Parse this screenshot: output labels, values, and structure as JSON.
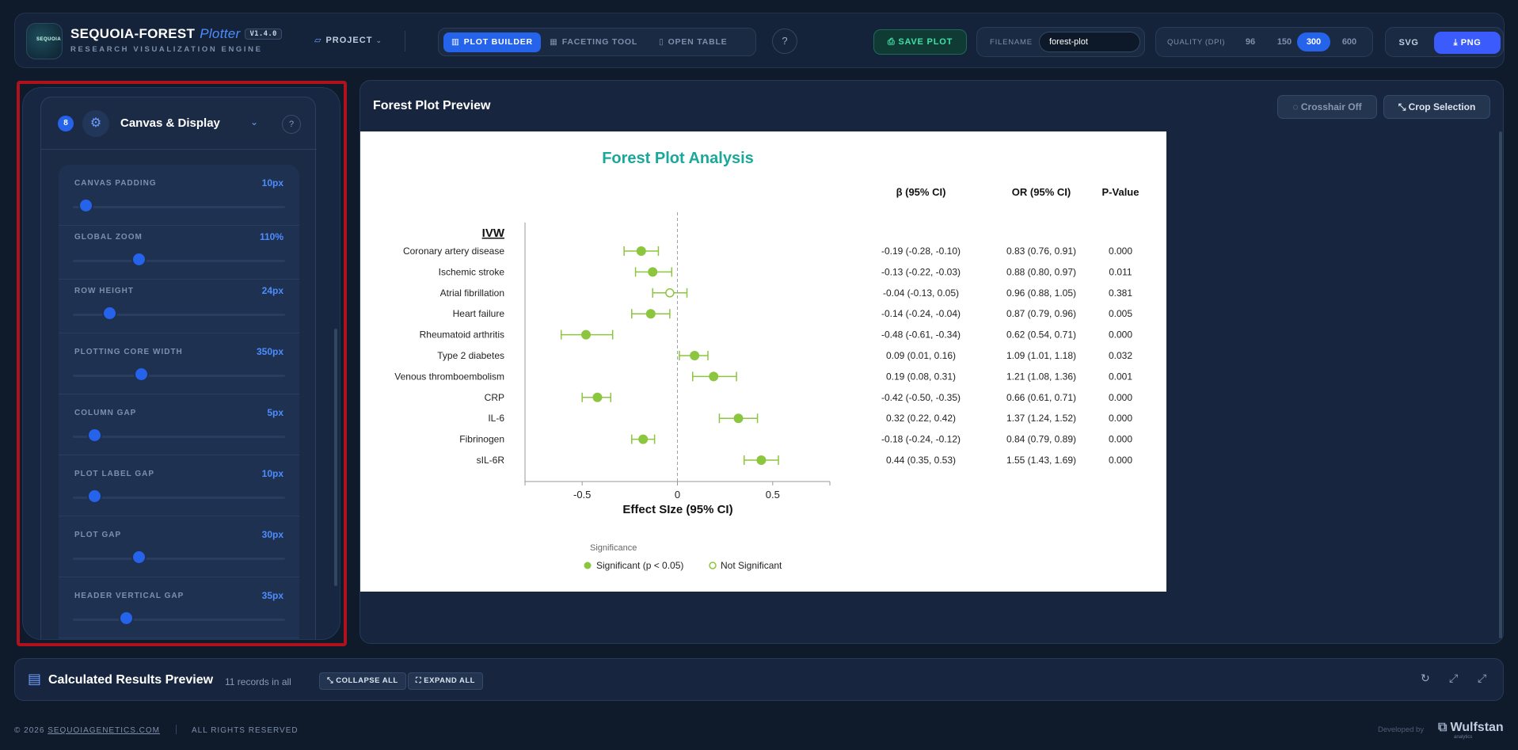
{
  "brand": {
    "logo_text": "SEQUOIA",
    "name": "SEQUOIA-FOREST",
    "product": "Plotter",
    "version": "V1.4.0",
    "subtitle": "RESEARCH VISUALIZATION ENGINE"
  },
  "nav": {
    "project_label": "PROJECT",
    "tabs": [
      {
        "label": "PLOT BUILDER",
        "icon": "bar-chart-icon",
        "active": true
      },
      {
        "label": "FACETING TOOL",
        "icon": "grid-icon",
        "active": false
      },
      {
        "label": "OPEN TABLE",
        "icon": "file-icon",
        "active": false
      }
    ],
    "help_label": "?"
  },
  "toolbar": {
    "save_label": "SAVE PLOT",
    "filename_label": "FILENAME",
    "filename_value": "forest-plot",
    "quality_label": "QUALITY (DPI)",
    "quality_options": [
      "96",
      "150",
      "300",
      "600"
    ],
    "quality_selected": "300",
    "format_options": [
      "SVG",
      "PNG"
    ],
    "format_selected": "PNG"
  },
  "settings": {
    "section_index": "8",
    "section_title": "Canvas & Display",
    "help_label": "?",
    "sliders": [
      {
        "name": "CANVAS PADDING",
        "value": "10px",
        "fraction": 0.06
      },
      {
        "name": "GLOBAL ZOOM",
        "value": "110%",
        "fraction": 0.31
      },
      {
        "name": "ROW HEIGHT",
        "value": "24px",
        "fraction": 0.17
      },
      {
        "name": "PLOTTING CORE WIDTH",
        "value": "350px",
        "fraction": 0.32
      },
      {
        "name": "COLUMN GAP",
        "value": "5px",
        "fraction": 0.1
      },
      {
        "name": "PLOT LABEL GAP",
        "value": "10px",
        "fraction": 0.1
      },
      {
        "name": "PLOT GAP",
        "value": "30px",
        "fraction": 0.31
      },
      {
        "name": "HEADER VERTICAL GAP",
        "value": "35px",
        "fraction": 0.25
      }
    ]
  },
  "preview": {
    "title": "Forest Plot Preview",
    "crosshair_label": "Crosshair Off",
    "crop_label": "Crop Selection"
  },
  "chart_data": {
    "type": "forest",
    "title": "Forest Plot Analysis",
    "group_label": "IVW",
    "xlabel": "Effect SIze (95% CI)",
    "xticks": [
      "-0.5",
      "0",
      "0.5"
    ],
    "xlim": [
      -0.8,
      0.8
    ],
    "reference_line": 0,
    "column_headers": [
      "β (95% CI)",
      "OR (95% CI)",
      "P-Value"
    ],
    "rows": [
      {
        "label": "Coronary artery disease",
        "beta": -0.19,
        "lo": -0.28,
        "hi": -0.1,
        "beta_ci": "-0.19 (-0.28, -0.10)",
        "or_ci": "0.83 (0.76, 0.91)",
        "p": "0.000",
        "significant": true
      },
      {
        "label": "Ischemic stroke",
        "beta": -0.13,
        "lo": -0.22,
        "hi": -0.03,
        "beta_ci": "-0.13 (-0.22, -0.03)",
        "or_ci": "0.88 (0.80, 0.97)",
        "p": "0.011",
        "significant": true
      },
      {
        "label": "Atrial fibrillation",
        "beta": -0.04,
        "lo": -0.13,
        "hi": 0.05,
        "beta_ci": "-0.04 (-0.13, 0.05)",
        "or_ci": "0.96 (0.88, 1.05)",
        "p": "0.381",
        "significant": false
      },
      {
        "label": "Heart failure",
        "beta": -0.14,
        "lo": -0.24,
        "hi": -0.04,
        "beta_ci": "-0.14 (-0.24, -0.04)",
        "or_ci": "0.87 (0.79, 0.96)",
        "p": "0.005",
        "significant": true
      },
      {
        "label": "Rheumatoid arthritis",
        "beta": -0.48,
        "lo": -0.61,
        "hi": -0.34,
        "beta_ci": "-0.48 (-0.61, -0.34)",
        "or_ci": "0.62 (0.54, 0.71)",
        "p": "0.000",
        "significant": true
      },
      {
        "label": "Type 2 diabetes",
        "beta": 0.09,
        "lo": 0.01,
        "hi": 0.16,
        "beta_ci": "0.09 (0.01, 0.16)",
        "or_ci": "1.09 (1.01, 1.18)",
        "p": "0.032",
        "significant": true
      },
      {
        "label": "Venous thromboembolism",
        "beta": 0.19,
        "lo": 0.08,
        "hi": 0.31,
        "beta_ci": "0.19 (0.08, 0.31)",
        "or_ci": "1.21 (1.08, 1.36)",
        "p": "0.001",
        "significant": true
      },
      {
        "label": "CRP",
        "beta": -0.42,
        "lo": -0.5,
        "hi": -0.35,
        "beta_ci": "-0.42 (-0.50, -0.35)",
        "or_ci": "0.66 (0.61, 0.71)",
        "p": "0.000",
        "significant": true
      },
      {
        "label": "IL-6",
        "beta": 0.32,
        "lo": 0.22,
        "hi": 0.42,
        "beta_ci": "0.32 (0.22, 0.42)",
        "or_ci": "1.37 (1.24, 1.52)",
        "p": "0.000",
        "significant": true
      },
      {
        "label": "Fibrinogen",
        "beta": -0.18,
        "lo": -0.24,
        "hi": -0.12,
        "beta_ci": "-0.18 (-0.24, -0.12)",
        "or_ci": "0.84 (0.79, 0.89)",
        "p": "0.000",
        "significant": true
      },
      {
        "label": "sIL-6R",
        "beta": 0.44,
        "lo": 0.35,
        "hi": 0.53,
        "beta_ci": "0.44 (0.35, 0.53)",
        "or_ci": "1.55 (1.43, 1.69)",
        "p": "0.000",
        "significant": true
      }
    ],
    "legend": {
      "title": "Significance",
      "entries": [
        "Significant (p < 0.05)",
        "Not Significant"
      ]
    },
    "colors": {
      "title": "#1aa89a",
      "marker": "#8cc63f",
      "reference": "#9aa3ad"
    }
  },
  "results": {
    "title": "Calculated Results Preview",
    "count": "11 records in all",
    "collapse_label": "COLLAPSE ALL",
    "expand_label": "EXPAND ALL"
  },
  "footer": {
    "copyright": "© 2026",
    "site": "SEQUOIAGENETICS.COM",
    "rights": "ALL RIGHTS RESERVED",
    "developed_by": "Developed by",
    "developer": "Wulfstan",
    "developer_sub": "analytics"
  }
}
